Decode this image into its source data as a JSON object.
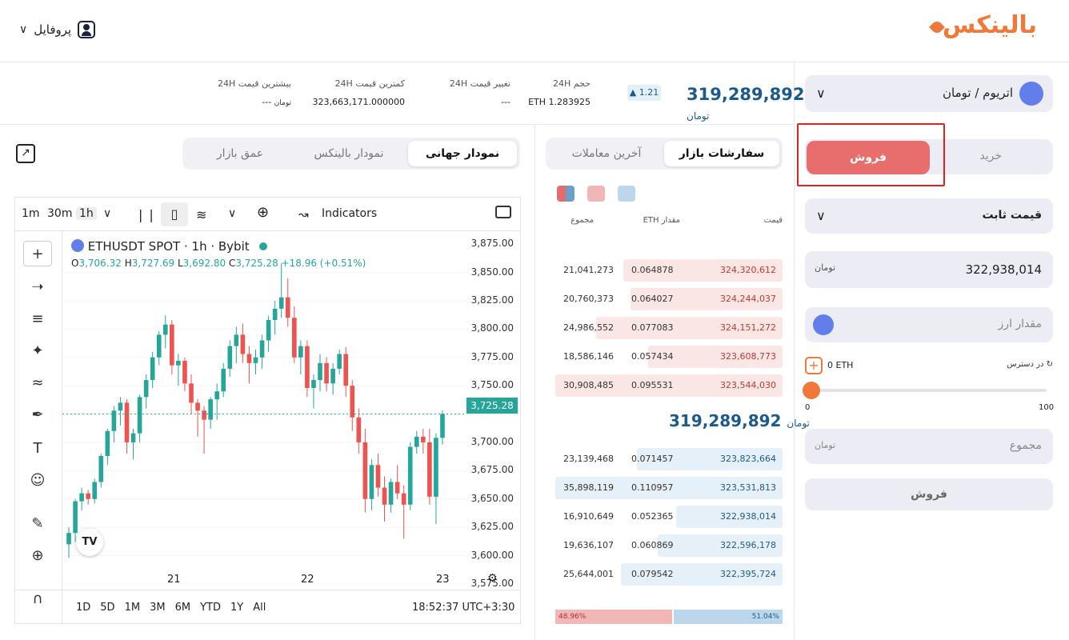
{
  "header": {
    "logo": "بالینکس",
    "profile_label": "پروفایل"
  },
  "stats": {
    "price": "319,289,892",
    "price_unit": "تومان",
    "change": "1.21",
    "volume_label": "حجم 24H",
    "volume_value": "ETH 1.283925",
    "change_label": "تغییر قیمت 24H",
    "change_value": "---",
    "low_label": "کمترین قیمت 24H",
    "low_value": "323,663,171.000000",
    "high_label": "بیشترین قیمت 24H",
    "high_value": "---"
  },
  "chart_tabs": {
    "global": "نمودار جهانی",
    "balinex": "نمودار بالینکس",
    "depth": "عمق بازار"
  },
  "toolbar": {
    "tf1": "1m",
    "tf2": "30m",
    "tf3": "1h",
    "indicators": "Indicators"
  },
  "chart": {
    "symbol": "ETHUSDT SPOT · 1h · Bybit",
    "ohlc_o": "3,706.32",
    "ohlc_h": "3,727.69",
    "ohlc_l": "3,692.80",
    "ohlc_c": "3,725.28",
    "ohlc_chg": "+18.96 (+0.51%)",
    "last_price": "3,725.28",
    "ranges": [
      "1D",
      "5D",
      "1M",
      "3M",
      "6M",
      "YTD",
      "1Y",
      "All"
    ],
    "time": "18:52:37 UTC+3:30",
    "colors": {
      "up": "#26a69a",
      "down": "#ef5350"
    }
  },
  "chart_data": {
    "type": "candlestick",
    "y_ticks": [
      "3,875.00",
      "3,850.00",
      "3,825.00",
      "3,800.00",
      "3,775.00",
      "3,750.00",
      "3,700.00",
      "3,675.00",
      "3,650.00",
      "3,625.00",
      "3,600.00",
      "3,575.00"
    ],
    "x_ticks": [
      "21",
      "22",
      "23"
    ],
    "ylim": [
      3570,
      3885
    ],
    "candles": [
      [
        3610,
        3625,
        3598,
        3620
      ],
      [
        3620,
        3650,
        3612,
        3648
      ],
      [
        3648,
        3660,
        3640,
        3655
      ],
      [
        3655,
        3658,
        3645,
        3650
      ],
      [
        3650,
        3668,
        3646,
        3665
      ],
      [
        3665,
        3690,
        3660,
        3688
      ],
      [
        3688,
        3712,
        3680,
        3710
      ],
      [
        3710,
        3732,
        3700,
        3728
      ],
      [
        3728,
        3740,
        3715,
        3735
      ],
      [
        3735,
        3738,
        3690,
        3700
      ],
      [
        3700,
        3712,
        3685,
        3708
      ],
      [
        3708,
        3742,
        3700,
        3740
      ],
      [
        3740,
        3760,
        3730,
        3755
      ],
      [
        3755,
        3780,
        3748,
        3775
      ],
      [
        3775,
        3798,
        3768,
        3795
      ],
      [
        3795,
        3812,
        3783,
        3804
      ],
      [
        3804,
        3808,
        3760,
        3768
      ],
      [
        3768,
        3778,
        3750,
        3772
      ],
      [
        3772,
        3775,
        3745,
        3752
      ],
      [
        3752,
        3760,
        3725,
        3735
      ],
      [
        3735,
        3738,
        3705,
        3728
      ],
      [
        3728,
        3732,
        3690,
        3720
      ],
      [
        3720,
        3740,
        3712,
        3738
      ],
      [
        3738,
        3752,
        3720,
        3745
      ],
      [
        3745,
        3770,
        3740,
        3765
      ],
      [
        3765,
        3790,
        3758,
        3785
      ],
      [
        3785,
        3802,
        3770,
        3795
      ],
      [
        3795,
        3805,
        3770,
        3778
      ],
      [
        3778,
        3785,
        3752,
        3770
      ],
      [
        3770,
        3782,
        3760,
        3775
      ],
      [
        3775,
        3795,
        3765,
        3790
      ],
      [
        3790,
        3812,
        3780,
        3808
      ],
      [
        3808,
        3825,
        3795,
        3818
      ],
      [
        3818,
        3858,
        3810,
        3828
      ],
      [
        3828,
        3845,
        3802,
        3810
      ],
      [
        3810,
        3820,
        3770,
        3775
      ],
      [
        3775,
        3790,
        3760,
        3785
      ],
      [
        3785,
        3790,
        3740,
        3748
      ],
      [
        3748,
        3760,
        3730,
        3755
      ],
      [
        3755,
        3778,
        3745,
        3770
      ],
      [
        3770,
        3775,
        3745,
        3752
      ],
      [
        3752,
        3770,
        3742,
        3765
      ],
      [
        3765,
        3782,
        3760,
        3778
      ],
      [
        3778,
        3784,
        3740,
        3750
      ],
      [
        3750,
        3755,
        3710,
        3722
      ],
      [
        3722,
        3730,
        3690,
        3700
      ],
      [
        3700,
        3712,
        3638,
        3650
      ],
      [
        3650,
        3685,
        3640,
        3680
      ],
      [
        3680,
        3690,
        3652,
        3660
      ],
      [
        3660,
        3670,
        3630,
        3645
      ],
      [
        3645,
        3668,
        3638,
        3665
      ],
      [
        3665,
        3680,
        3650,
        3655
      ],
      [
        3655,
        3662,
        3615,
        3645
      ],
      [
        3645,
        3700,
        3640,
        3696
      ],
      [
        3696,
        3710,
        3690,
        3705
      ],
      [
        3705,
        3712,
        3690,
        3700
      ],
      [
        3700,
        3712,
        3645,
        3652
      ],
      [
        3652,
        3708,
        3628,
        3704
      ],
      [
        3704,
        3728,
        3698,
        3725
      ]
    ]
  },
  "orderbook": {
    "tabs": {
      "market": "سفارشات بازار",
      "trades": "آخرین معاملات"
    },
    "headers": {
      "price": "قیمت",
      "amount": "مقدار ETH",
      "total": "مجموع"
    },
    "asks": [
      {
        "total": "21,041,273",
        "amount": "0.064878",
        "price": "324,320,612",
        "fill": 0.7
      },
      {
        "total": "20,760,373",
        "amount": "0.064027",
        "price": "324,244,037",
        "fill": 0.67
      },
      {
        "total": "24,986,552",
        "amount": "0.077083",
        "price": "324,151,272",
        "fill": 0.82
      },
      {
        "total": "18,586,146",
        "amount": "0.057434",
        "price": "323,608,773",
        "fill": 0.59
      },
      {
        "total": "30,908,485",
        "amount": "0.095531",
        "price": "323,544,030",
        "fill": 1.0
      }
    ],
    "mid_price": "319,289,892",
    "bids": [
      {
        "total": "23,139,468",
        "amount": "0.071457",
        "price": "323,823,664",
        "fill": 0.64
      },
      {
        "total": "35,898,119",
        "amount": "0.110957",
        "price": "323,531,813",
        "fill": 1.0
      },
      {
        "total": "16,910,649",
        "amount": "0.052365",
        "price": "322,938,014",
        "fill": 0.47
      },
      {
        "total": "19,636,107",
        "amount": "0.060869",
        "price": "322,596,178",
        "fill": 0.55
      },
      {
        "total": "25,644,001",
        "amount": "0.079542",
        "price": "322,395,724",
        "fill": 0.71
      }
    ],
    "sell_pct": "48.96%",
    "buy_pct": "51.04%"
  },
  "form": {
    "pair": "اتریوم / تومان",
    "buy": "خرید",
    "sell": "فروش",
    "order_type": "قیمت ثابت",
    "price_value": "322,938,014",
    "amount_placeholder": "مقدار ارز",
    "available_label": "در دسترس",
    "available_value": "0 ETH",
    "slider_min": "0",
    "slider_max": "100",
    "total_placeholder": "مجموع",
    "submit": "فروش"
  }
}
